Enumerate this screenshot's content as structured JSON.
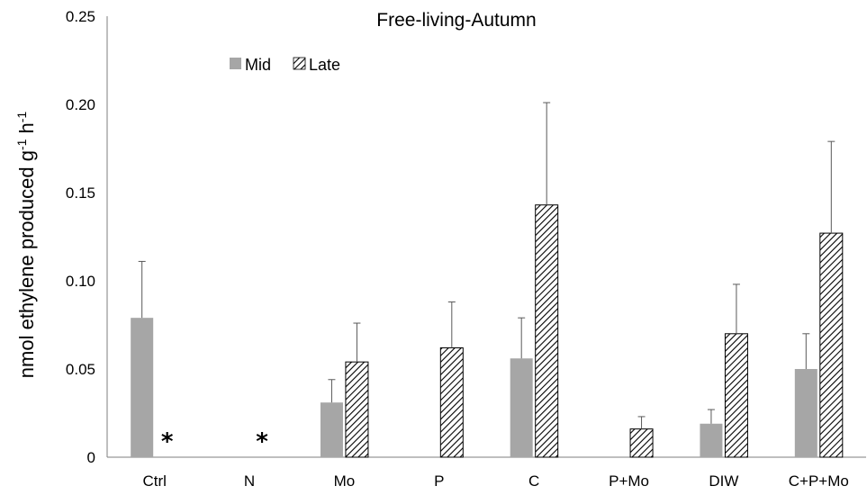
{
  "chart_data": {
    "type": "bar",
    "title": "Free-living-Autumn",
    "ylabel": "nmol ethylene produced g",
    "ylabel_sup1": "-1",
    "ylabel_mid": " h",
    "ylabel_sup2": "-1",
    "xlabel": "",
    "ylim": [
      0,
      0.25
    ],
    "yticks": [
      "0",
      "0.05",
      "0.10",
      "0.15",
      "0.20",
      "0.25"
    ],
    "ytick_values": [
      0,
      0.05,
      0.1,
      0.15,
      0.2,
      0.25
    ],
    "categories": [
      "Ctrl",
      "N",
      "Mo",
      "P",
      "C",
      "P+Mo",
      "DIW",
      "C+P+Mo"
    ],
    "series": [
      {
        "name": "Mid",
        "fill": "solid",
        "color": "#a6a6a6",
        "values": [
          0.079,
          null,
          0.031,
          null,
          0.056,
          null,
          0.019,
          0.05
        ],
        "errors": [
          0.032,
          null,
          0.013,
          null,
          0.023,
          null,
          0.008,
          0.02
        ]
      },
      {
        "name": "Late",
        "fill": "hatched",
        "color": "#000000",
        "values": [
          null,
          null,
          0.054,
          0.062,
          0.143,
          0.016,
          0.07,
          0.127
        ],
        "errors": [
          null,
          null,
          0.022,
          0.026,
          0.058,
          0.007,
          0.028,
          0.052
        ]
      }
    ],
    "annotations": [
      {
        "category": "Ctrl",
        "series": "Late",
        "text": "*"
      },
      {
        "category": "N",
        "series": "Late",
        "text": "*"
      }
    ],
    "legend": "top-left",
    "grid": false
  }
}
